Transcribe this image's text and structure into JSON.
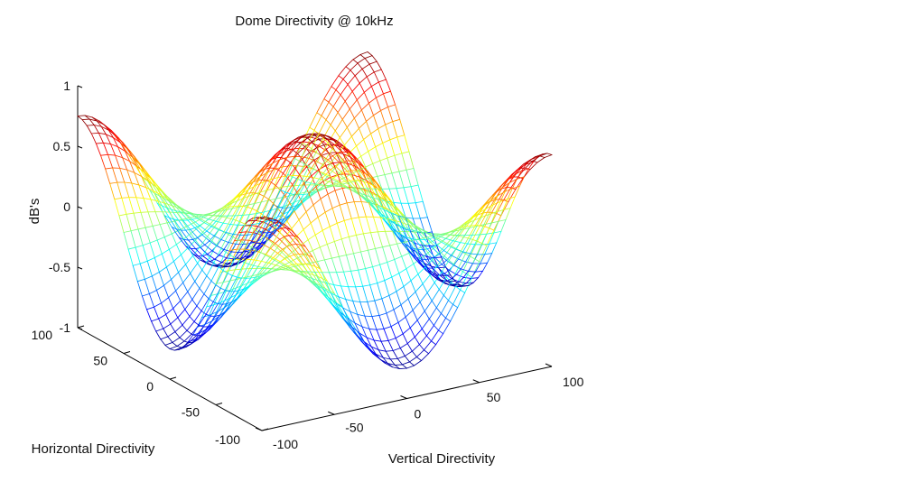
{
  "chart_data": {
    "type": "surface",
    "title": "Dome Directivity @ 10kHz",
    "xlabel": "Vertical Directivity",
    "ylabel": "Horizontal Directivity",
    "zlabel": "dB's",
    "x_ticks": [
      -100,
      -50,
      0,
      50,
      100
    ],
    "y_ticks": [
      -100,
      -50,
      0,
      50,
      100
    ],
    "z_ticks": [
      -1,
      -0.5,
      0,
      0.5,
      1
    ],
    "xlim": [
      -100,
      100
    ],
    "ylim": [
      -100,
      100
    ],
    "zlim": [
      -1,
      1
    ],
    "colormap": "jet",
    "color_limits": [
      -0.75,
      0.75
    ],
    "grid": false,
    "legend": "none",
    "surface_formula": "z = 0.75 * cos(pi * vertical / 100) * cos(pi * horizontal / 100)",
    "surface_points": [
      {
        "vertical": 0,
        "horizontal": 0,
        "db": 0.75
      },
      {
        "vertical": 100,
        "horizontal": 0,
        "db": -0.75
      },
      {
        "vertical": -100,
        "horizontal": 0,
        "db": -0.75
      },
      {
        "vertical": 0,
        "horizontal": 100,
        "db": -0.75
      },
      {
        "vertical": 0,
        "horizontal": -100,
        "db": -0.75
      },
      {
        "vertical": 100,
        "horizontal": 100,
        "db": 0.75
      },
      {
        "vertical": -100,
        "horizontal": -100,
        "db": 0.75
      },
      {
        "vertical": 100,
        "horizontal": -100,
        "db": 0.75
      },
      {
        "vertical": -100,
        "horizontal": 100,
        "db": 0.75
      }
    ]
  }
}
